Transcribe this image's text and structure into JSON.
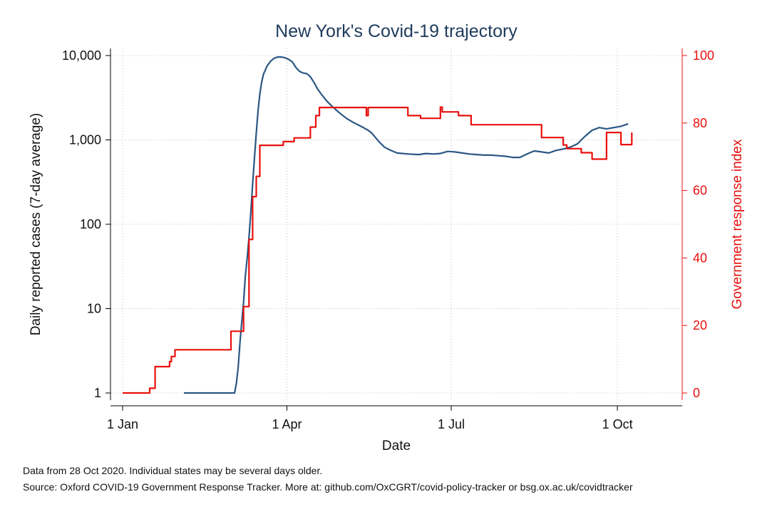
{
  "chart_data": {
    "type": "line",
    "title": "New York's Covid-19 trajectory",
    "xlabel": "Date",
    "ylabel": "Daily reported cases (7-day average)",
    "y2label": "Government response index",
    "x_domain_days": [
      0,
      302
    ],
    "x_ticks": [
      {
        "day": 0,
        "label": "1 Jan"
      },
      {
        "day": 91,
        "label": "1 Apr"
      },
      {
        "day": 182,
        "label": "1 Jul"
      },
      {
        "day": 274,
        "label": "1 Oct"
      }
    ],
    "y_scale": "log",
    "y_ticks": [
      {
        "value": 1,
        "label": "1"
      },
      {
        "value": 10,
        "label": "10"
      },
      {
        "value": 100,
        "label": "100"
      },
      {
        "value": 1000,
        "label": "1,000"
      },
      {
        "value": 10000,
        "label": "10,000"
      }
    ],
    "y2_range": [
      0,
      100
    ],
    "y2_ticks": [
      {
        "value": 0,
        "label": "0"
      },
      {
        "value": 20,
        "label": "20"
      },
      {
        "value": 40,
        "label": "40"
      },
      {
        "value": 60,
        "label": "60"
      },
      {
        "value": 80,
        "label": "80"
      },
      {
        "value": 100,
        "label": "100"
      }
    ],
    "grid": true,
    "series": [
      {
        "axis": "left",
        "color": "#2a5783",
        "points": [
          [
            34,
            1
          ],
          [
            62,
            1
          ],
          [
            63,
            1.3
          ],
          [
            64,
            2
          ],
          [
            65,
            4
          ],
          [
            66,
            7
          ],
          [
            67,
            12
          ],
          [
            68,
            25
          ],
          [
            69,
            40
          ],
          [
            70,
            70
          ],
          [
            71,
            140
          ],
          [
            72,
            300
          ],
          [
            73,
            600
          ],
          [
            74,
            1200
          ],
          [
            75,
            2200
          ],
          [
            76,
            3500
          ],
          [
            77,
            4800
          ],
          [
            78,
            6000
          ],
          [
            80,
            7500
          ],
          [
            82,
            8600
          ],
          [
            84,
            9300
          ],
          [
            86,
            9600
          ],
          [
            88,
            9600
          ],
          [
            90,
            9400
          ],
          [
            92,
            9000
          ],
          [
            94,
            8400
          ],
          [
            96,
            7200
          ],
          [
            98,
            6500
          ],
          [
            100,
            6200
          ],
          [
            102,
            6100
          ],
          [
            104,
            5600
          ],
          [
            106,
            4800
          ],
          [
            108,
            4000
          ],
          [
            110,
            3500
          ],
          [
            113,
            2900
          ],
          [
            116,
            2500
          ],
          [
            120,
            2100
          ],
          [
            124,
            1800
          ],
          [
            128,
            1600
          ],
          [
            132,
            1450
          ],
          [
            136,
            1300
          ],
          [
            138,
            1200
          ],
          [
            142,
            950
          ],
          [
            145,
            820
          ],
          [
            148,
            760
          ],
          [
            152,
            700
          ],
          [
            158,
            680
          ],
          [
            164,
            670
          ],
          [
            168,
            690
          ],
          [
            172,
            680
          ],
          [
            176,
            690
          ],
          [
            180,
            730
          ],
          [
            184,
            720
          ],
          [
            188,
            700
          ],
          [
            192,
            680
          ],
          [
            196,
            670
          ],
          [
            200,
            660
          ],
          [
            204,
            660
          ],
          [
            208,
            650
          ],
          [
            212,
            640
          ],
          [
            216,
            620
          ],
          [
            220,
            620
          ],
          [
            224,
            680
          ],
          [
            228,
            740
          ],
          [
            232,
            720
          ],
          [
            236,
            700
          ],
          [
            240,
            750
          ],
          [
            244,
            780
          ],
          [
            248,
            820
          ],
          [
            252,
            900
          ],
          [
            256,
            1100
          ],
          [
            260,
            1300
          ],
          [
            264,
            1400
          ],
          [
            268,
            1350
          ],
          [
            272,
            1400
          ],
          [
            276,
            1450
          ],
          [
            280,
            1550
          ]
        ]
      },
      {
        "axis": "right",
        "color": "#e8100e",
        "points": [
          [
            0,
            0
          ],
          [
            15,
            0
          ],
          [
            15,
            1.4
          ],
          [
            18,
            1.4
          ],
          [
            18,
            7.8
          ],
          [
            26,
            7.8
          ],
          [
            26,
            9.3
          ],
          [
            27,
            9.3
          ],
          [
            27,
            10.8
          ],
          [
            29,
            10.8
          ],
          [
            29,
            12.8
          ],
          [
            60,
            12.8
          ],
          [
            60,
            18.3
          ],
          [
            67,
            18.3
          ],
          [
            67,
            25.6
          ],
          [
            70,
            25.6
          ],
          [
            70,
            45.5
          ],
          [
            72,
            45.5
          ],
          [
            72,
            58.2
          ],
          [
            74,
            58.2
          ],
          [
            74,
            64.2
          ],
          [
            76,
            64.2
          ],
          [
            76,
            73.4
          ],
          [
            89,
            73.4
          ],
          [
            89,
            74.5
          ],
          [
            95,
            74.5
          ],
          [
            95,
            75.6
          ],
          [
            104,
            75.6
          ],
          [
            104,
            78.8
          ],
          [
            107,
            78.8
          ],
          [
            107,
            82.2
          ],
          [
            109,
            82.2
          ],
          [
            109,
            84.6
          ],
          [
            135,
            84.6
          ],
          [
            135,
            82.2
          ],
          [
            136,
            82.2
          ],
          [
            136,
            84.6
          ],
          [
            158,
            84.6
          ],
          [
            158,
            82.2
          ],
          [
            165,
            82.2
          ],
          [
            165,
            81.4
          ],
          [
            176,
            81.4
          ],
          [
            176,
            84.7
          ],
          [
            177,
            84.7
          ],
          [
            177,
            83.3
          ],
          [
            186,
            83.3
          ],
          [
            186,
            82.2
          ],
          [
            193,
            82.2
          ],
          [
            193,
            79.5
          ],
          [
            232,
            79.5
          ],
          [
            232,
            75.7
          ],
          [
            244,
            75.7
          ],
          [
            244,
            73.5
          ],
          [
            246,
            73.5
          ],
          [
            246,
            72.4
          ],
          [
            254,
            72.4
          ],
          [
            254,
            71.2
          ],
          [
            260,
            71.2
          ],
          [
            260,
            69.3
          ],
          [
            268,
            69.3
          ],
          [
            268,
            77.2
          ],
          [
            276,
            77.2
          ],
          [
            276,
            73.6
          ],
          [
            282,
            73.6
          ],
          [
            282,
            77.2
          ]
        ]
      }
    ]
  },
  "notes": [
    "Data from 28 Oct 2020. Individual states may be several days older.",
    "Source: Oxford COVID-19 Government Response Tracker. More at: github.com/OxCGRT/covid-policy-tracker or bsg.ox.ac.uk/covidtracker"
  ]
}
